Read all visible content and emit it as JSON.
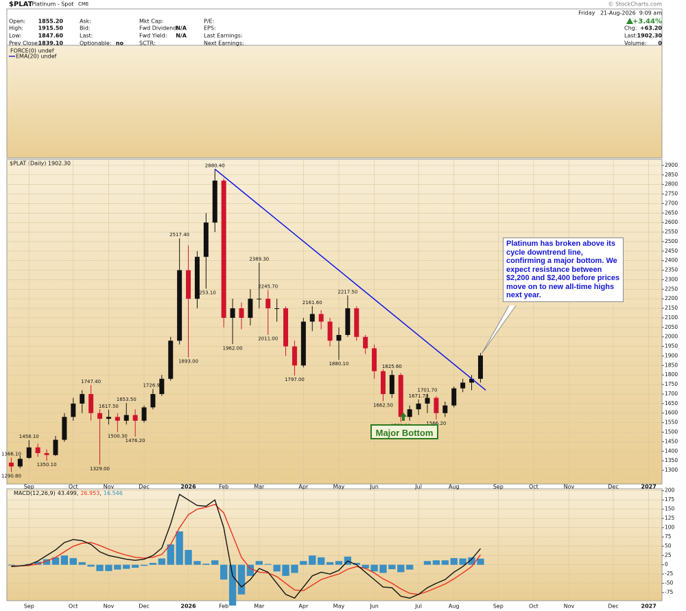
{
  "header": {
    "symbol": "$PLAT",
    "name": "Platinum - Spot",
    "exchange": "CME",
    "credit": "© StockCharts.com",
    "date": "Friday   21-Aug-2026  9:09 am",
    "change_pct": "+3.44%",
    "quote_columns": [
      [
        {
          "label": "Open:",
          "value": "1855.20"
        },
        {
          "label": "High:",
          "value": "1915.50"
        },
        {
          "label": "Low:",
          "value": "1847.60"
        },
        {
          "label": "Prev Close:",
          "value": "1839.10"
        }
      ],
      [
        {
          "label": "Ask:"
        },
        {
          "label": "Bid:"
        },
        {
          "label": "Last:"
        },
        {
          "label": "Optionable:",
          "value": "no"
        }
      ],
      [
        {
          "label": "Mkt Cap:"
        },
        {
          "label": "Fwd Dividend:",
          "value": "N/A"
        },
        {
          "label": "Fwd Yield:",
          "value": "N/A"
        },
        {
          "label": "SCTR:"
        }
      ],
      [
        {
          "label": "P/E:"
        },
        {
          "label": "EPS:"
        },
        {
          "label": "Last Earnings:"
        },
        {
          "label": "Next Earnings:"
        }
      ]
    ],
    "summary": [
      {
        "label": "Chg:",
        "value": "+63.20"
      },
      {
        "label": "Last:",
        "value": "1902.30"
      },
      {
        "label": "Volume:",
        "value": "0"
      }
    ],
    "overlays": [
      "FORCE(0) undef",
      "EMA(20) undef"
    ]
  },
  "chart_data": [
    {
      "type": "candlestick",
      "title": "$PLAT (Daily) 1902.30",
      "categories": [
        null,
        null,
        "Sep",
        null,
        null,
        null,
        null,
        "Oct",
        null,
        null,
        null,
        "Nov",
        null,
        null,
        null,
        "Dec",
        null,
        null,
        null,
        null,
        "2026",
        null,
        null,
        null,
        "Feb",
        null,
        null,
        null,
        "Mar",
        null,
        null,
        null,
        null,
        "Apr",
        null,
        null,
        null,
        "May",
        null,
        null,
        null,
        "Jun",
        null,
        null,
        null,
        null,
        "Jul",
        null,
        null,
        null,
        "Aug",
        null,
        null,
        null,
        null,
        "Sep",
        null,
        null,
        null,
        "Oct",
        null,
        null,
        null,
        "Nov",
        null,
        null,
        null,
        null,
        "Dec",
        null,
        null,
        null,
        "2027",
        null
      ],
      "open": [
        1340,
        1320,
        1365,
        1420,
        1390,
        1380,
        1460,
        1580,
        1650,
        1700,
        1600,
        1570,
        1580,
        1560,
        1590,
        1560,
        1630,
        1700,
        1780,
        1980,
        2350,
        2200,
        2420,
        2600,
        2820,
        2100,
        2150,
        2100,
        2200,
        2200,
        2150,
        2150,
        1950,
        1850,
        2080,
        2120,
        2080,
        1980,
        2010,
        2150,
        2000,
        1940,
        1820,
        1700,
        1800,
        1580,
        1620,
        1650,
        1680,
        1600,
        1640,
        1730,
        1760,
        1780,
        null,
        null,
        null,
        null,
        null,
        null,
        null,
        null,
        null,
        null,
        null,
        null,
        null,
        null,
        null,
        null,
        null,
        null,
        null,
        null
      ],
      "high": [
        1366.1,
        1375,
        1458.1,
        1440,
        1410,
        1480,
        1600,
        1680,
        1720,
        1747.4,
        1620,
        1617.5,
        1600,
        1653.5,
        1620,
        1640,
        1726.9,
        1800,
        2000,
        2517.4,
        2480,
        2450,
        2650,
        2880.4,
        2830,
        2200,
        2180,
        2250,
        2389.3,
        2245.7,
        2200,
        2160,
        1980,
        2100,
        2161.6,
        2140,
        2100,
        2050,
        2217.5,
        2160,
        2010,
        1960,
        1830,
        1825.6,
        1810,
        1640,
        1671.7,
        1701.7,
        1690,
        1660,
        1740,
        1780,
        1800,
        1915.5,
        null,
        null,
        null,
        null,
        null,
        null,
        null,
        null,
        null,
        null,
        null,
        null,
        null,
        null,
        null,
        null,
        null,
        null,
        null,
        null
      ],
      "low": [
        1290.8,
        1310,
        1360,
        1370,
        1350.1,
        1375,
        1450,
        1560,
        1600,
        1560,
        1329,
        1540,
        1500.3,
        1540,
        1476.2,
        1550,
        1620,
        1690,
        1770,
        1960,
        1893,
        2150,
        2253.1,
        2550,
        2050,
        1962,
        2040,
        2060,
        2150,
        2011,
        2080,
        1900,
        1797,
        1840,
        2030,
        2040,
        1950,
        1880.1,
        2000,
        1980,
        1910,
        1780,
        1662.5,
        1680,
        1553.2,
        1560,
        1590,
        1600,
        1566.2,
        1580,
        1630,
        1710,
        1720,
        1760,
        null,
        null,
        null,
        null,
        null,
        null,
        null,
        null,
        null,
        null,
        null,
        null,
        null,
        null,
        null,
        null,
        null,
        null,
        null,
        null
      ],
      "close": [
        1320,
        1360,
        1420,
        1390,
        1380,
        1460,
        1580,
        1650,
        1700,
        1600,
        1570,
        1580,
        1560,
        1590,
        1560,
        1630,
        1700,
        1780,
        1980,
        2350,
        2200,
        2420,
        2600,
        2820,
        2100,
        2150,
        2100,
        2200,
        2200,
        2150,
        2150,
        1950,
        1850,
        2080,
        2120,
        2080,
        1980,
        2010,
        2150,
        2000,
        1940,
        1820,
        1700,
        1800,
        1580,
        1620,
        1650,
        1680,
        1600,
        1640,
        1730,
        1760,
        1780,
        1902.3,
        null,
        null,
        null,
        null,
        null,
        null,
        null,
        null,
        null,
        null,
        null,
        null,
        null,
        null,
        null,
        null,
        null,
        null,
        null,
        null
      ],
      "high_labels": [
        "1366.10",
        null,
        "1458.10",
        null,
        null,
        null,
        null,
        null,
        null,
        "1747.40",
        null,
        "1617.50",
        null,
        "1653.50",
        null,
        null,
        "1726.90",
        null,
        null,
        "2517.40",
        null,
        null,
        null,
        "2880.40",
        null,
        null,
        null,
        null,
        "2389.30",
        "2245.70",
        null,
        null,
        null,
        null,
        "2161.60",
        null,
        null,
        null,
        "2217.50",
        null,
        null,
        null,
        null,
        "1825.60",
        null,
        null,
        "1671.70",
        "1701.70",
        null,
        null,
        null,
        null,
        null,
        null,
        null,
        null,
        null,
        null,
        null,
        null,
        null,
        null,
        null,
        null,
        null,
        null,
        null,
        null,
        null,
        null,
        null,
        null,
        null,
        null
      ],
      "low_labels": [
        "1290.80",
        null,
        null,
        null,
        "1350.10",
        null,
        null,
        null,
        null,
        null,
        "1329.00",
        null,
        "1500.30",
        null,
        "1476.20",
        null,
        null,
        null,
        null,
        null,
        "1893.00",
        null,
        "2253.10",
        null,
        null,
        "1962.00",
        null,
        null,
        null,
        "2011.00",
        null,
        null,
        "1797.00",
        null,
        null,
        null,
        null,
        "1880.10",
        null,
        null,
        null,
        null,
        "1662.50",
        null,
        "1553.20",
        null,
        null,
        null,
        "1566.20",
        null,
        null,
        null,
        null,
        null,
        null,
        null,
        null,
        null,
        null,
        null,
        null,
        null,
        null,
        null,
        null,
        null,
        null,
        null,
        null,
        null,
        null,
        null,
        null,
        null
      ],
      "up_color": "#111111",
      "down_color": "#d0142c",
      "ylim": [
        1228,
        2932
      ],
      "yticks": [
        1300,
        1350,
        1400,
        1450,
        1500,
        1550,
        1600,
        1650,
        1700,
        1750,
        1800,
        1850,
        1900,
        1950,
        2000,
        2050,
        2100,
        2150,
        2200,
        2250,
        2300,
        2350,
        2400,
        2450,
        2500,
        2550,
        2600,
        2650,
        2700,
        2750,
        2800,
        2850,
        2900
      ],
      "grid": true,
      "trendline": {
        "color": "#0a14e6",
        "values": [
          2880.4,
          1720
        ]
      },
      "annotations": [
        {
          "text": "Platinum has broken above its cycle downtrend line, confirming a major bottom. We expect resistance between $2,200 and $2,400 before prices move on to new all-time highs next year.",
          "color": "#1414d2"
        },
        {
          "text": "Major Bottom",
          "color": "#2e7a1e"
        }
      ]
    },
    {
      "type": "macd",
      "title": "MACD(12,26,9)",
      "separator": ",",
      "series": [
        {
          "color": "#111111",
          "values": [
            -5,
            -3,
            0,
            10,
            25,
            40,
            60,
            68,
            65,
            55,
            35,
            25,
            20,
            15,
            12,
            15,
            25,
            45,
            110,
            190,
            175,
            160,
            158,
            175,
            100,
            -30,
            -60,
            -40,
            -10,
            -20,
            -50,
            -80,
            -90,
            -60,
            -30,
            -20,
            -25,
            -15,
            10,
            0,
            -20,
            -40,
            -60,
            -62,
            -85,
            -90,
            -80,
            -62,
            -50,
            -40,
            -20,
            -5,
            15,
            43.499,
            null,
            null,
            null,
            null,
            null,
            null,
            null,
            null,
            null,
            null,
            null,
            null,
            null,
            null,
            null,
            null,
            null,
            null,
            null,
            null
          ]
        },
        {
          "color": "#e8321e",
          "values": [
            -3,
            -3,
            -2,
            2,
            10,
            20,
            35,
            50,
            58,
            60,
            52,
            42,
            33,
            26,
            20,
            18,
            20,
            28,
            55,
            100,
            135,
            150,
            155,
            163,
            140,
            80,
            20,
            -10,
            -20,
            -22,
            -32,
            -50,
            -68,
            -70,
            -55,
            -40,
            -32,
            -25,
            -12,
            -5,
            -10,
            -22,
            -38,
            -50,
            -65,
            -77,
            -80,
            -72,
            -62,
            -52,
            -38,
            -22,
            -5,
            26.953,
            null,
            null,
            null,
            null,
            null,
            null,
            null,
            null,
            null,
            null,
            null,
            null,
            null,
            null,
            null,
            null,
            null,
            null,
            null,
            null
          ]
        },
        {
          "color": "#3a8fc4",
          "values": [
            -2,
            0,
            2,
            8,
            15,
            20,
            25,
            18,
            7,
            -5,
            -17,
            -17,
            -13,
            -11,
            -8,
            -3,
            5,
            17,
            55,
            90,
            40,
            10,
            3,
            12,
            -40,
            -110,
            -80,
            -30,
            10,
            2,
            -18,
            -30,
            -22,
            10,
            25,
            20,
            7,
            10,
            22,
            5,
            -10,
            -18,
            -22,
            -12,
            -20,
            -13,
            0,
            10,
            12,
            12,
            18,
            17,
            20,
            16.546,
            null,
            null,
            null,
            null,
            null,
            null,
            null,
            null,
            null,
            null,
            null,
            null,
            null,
            null,
            null,
            null,
            null,
            null,
            null,
            null
          ]
        }
      ],
      "ylim": [
        -97,
        205
      ],
      "yticks": [
        -75,
        -50,
        -25,
        0,
        25,
        50,
        75,
        100,
        125,
        150,
        175,
        200
      ],
      "grid": true
    }
  ]
}
